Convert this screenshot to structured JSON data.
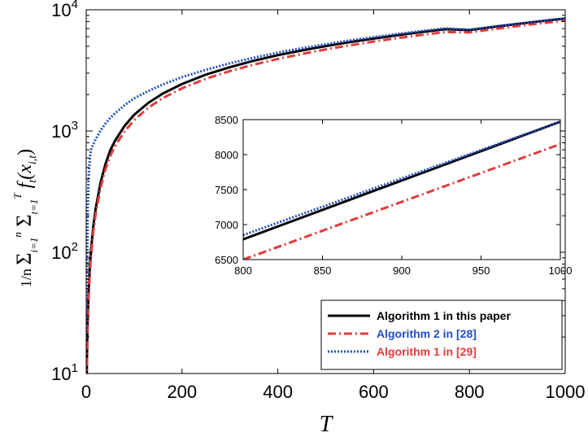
{
  "chart_data": [
    {
      "type": "line",
      "title": "",
      "xlabel": "T",
      "ylabel": "(1/n) Σ_{i=1}^{n} Σ_{t=1}^{T} f_t(x_{i,t})",
      "xlim": [
        0,
        1000
      ],
      "ylim": [
        10,
        10000
      ],
      "yscale": "log",
      "x_ticks": [
        "0",
        "200",
        "400",
        "600",
        "800",
        "1000"
      ],
      "y_ticks": [
        {
          "value": 10,
          "base": "10",
          "exp": "1"
        },
        {
          "value": 100,
          "base": "10",
          "exp": "2"
        },
        {
          "value": 1000,
          "base": "10",
          "exp": "3"
        },
        {
          "value": 10000,
          "base": "10",
          "exp": "4"
        }
      ],
      "grid": false,
      "legend_position": "bottom-right",
      "x": [
        1,
        2,
        3,
        5,
        8,
        10,
        15,
        20,
        30,
        40,
        50,
        60,
        80,
        100,
        130,
        160,
        200,
        250,
        300,
        350,
        400,
        450,
        500,
        550,
        600,
        650,
        700,
        750,
        800,
        850,
        900,
        950,
        1000
      ],
      "series": [
        {
          "name": "Algorithm 1 in this paper",
          "color": "#000000",
          "style": "solid",
          "values": [
            9,
            17,
            27,
            47,
            80,
            104,
            166,
            232,
            375,
            530,
            690,
            830,
            1100,
            1360,
            1710,
            2040,
            2440,
            2920,
            3360,
            3800,
            4220,
            4620,
            5020,
            5410,
            5790,
            6170,
            6550,
            6910,
            6790,
            7210,
            7630,
            8050,
            8470
          ]
        },
        {
          "name": "Algorithm 2 in [28]",
          "color": "#e03c3c",
          "style": "dashdot",
          "values": [
            8.5,
            15,
            24,
            42,
            72,
            93,
            150,
            210,
            340,
            480,
            620,
            750,
            990,
            1230,
            1560,
            1870,
            2250,
            2700,
            3120,
            3530,
            3930,
            4320,
            4710,
            5090,
            5470,
            5840,
            6200,
            6550,
            6500,
            6920,
            7330,
            7740,
            8150
          ]
        },
        {
          "name": "Algorithm 1 in [29]",
          "color": "#1f4fc4",
          "style": "dotted",
          "values": [
            22,
            80,
            200,
            420,
            620,
            700,
            780,
            860,
            1010,
            1150,
            1280,
            1400,
            1630,
            1860,
            2140,
            2420,
            2780,
            3200,
            3620,
            4030,
            4430,
            4820,
            5200,
            5580,
            5950,
            6320,
            6680,
            7020,
            6850,
            7260,
            7660,
            8060,
            8470
          ]
        }
      ]
    },
    {
      "type": "line",
      "title": "",
      "xlabel": "",
      "ylabel": "",
      "xlim": [
        800,
        1000
      ],
      "ylim": [
        6500,
        8500
      ],
      "yscale": "linear",
      "x_ticks": [
        "800",
        "850",
        "900",
        "950",
        "1000"
      ],
      "y_ticks": [
        "6500",
        "7000",
        "7500",
        "8000",
        "8500"
      ],
      "grid": false,
      "legend_position": "none",
      "x": [
        800,
        1000
      ],
      "series": [
        {
          "name": "Algorithm 1 in this paper",
          "color": "#000000",
          "style": "solid",
          "values": [
            6790,
            8470
          ]
        },
        {
          "name": "Algorithm 2 in [28]",
          "color": "#e03c3c",
          "style": "dashdot",
          "values": [
            6500,
            8150
          ]
        },
        {
          "name": "Algorithm 1 in [29]",
          "color": "#1f4fc4",
          "style": "dotted",
          "values": [
            6850,
            8470
          ]
        }
      ]
    }
  ],
  "legend": {
    "entries": [
      {
        "label": "Algorithm 1 in this paper",
        "text_color": "#000000"
      },
      {
        "label": "Algorithm 2 in [28]",
        "text_color": "#1f4fc4"
      },
      {
        "label": "Algorithm 1 in [29]",
        "text_color": "#e03c3c"
      }
    ]
  }
}
